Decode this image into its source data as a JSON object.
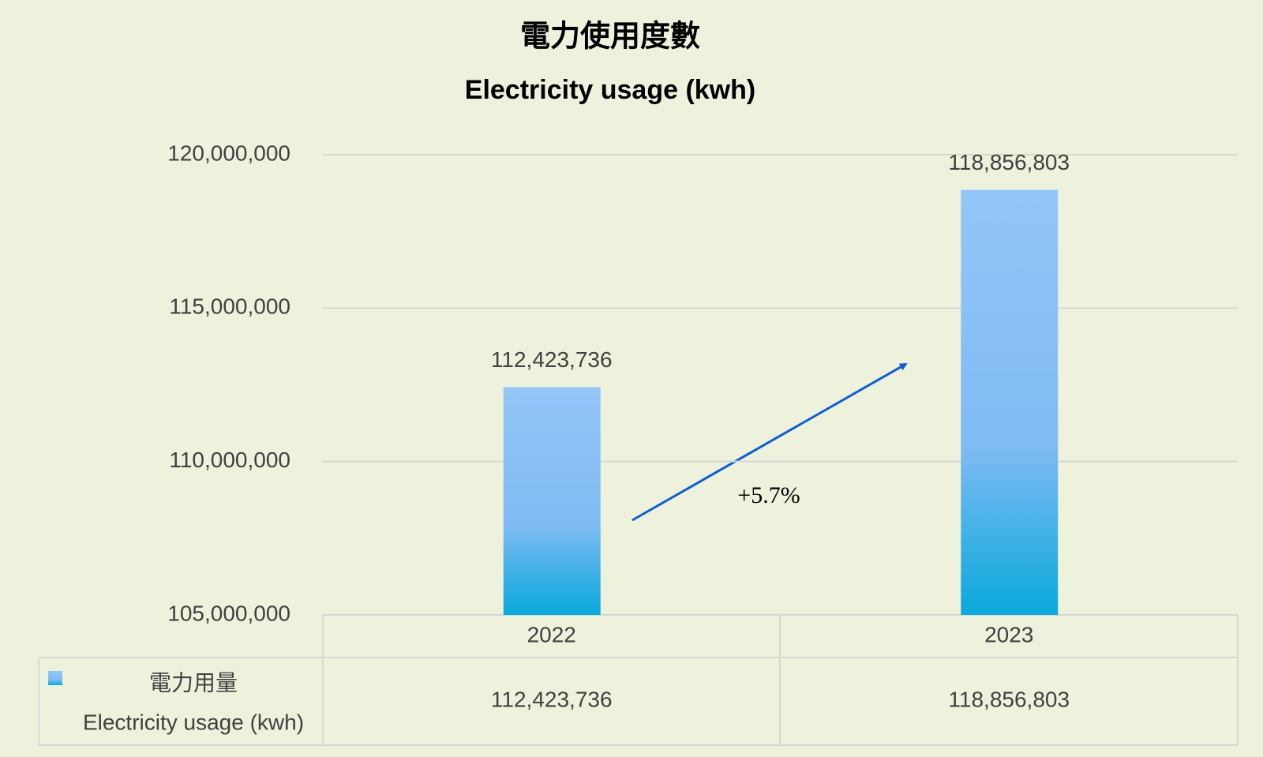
{
  "chart_data": {
    "type": "bar",
    "title": "電力使用度數",
    "subtitle": "Electricity usage (kwh)",
    "categories": [
      "2022",
      "2023"
    ],
    "series": [
      {
        "name": "電力用量",
        "name_en": "Electricity usage (kwh)",
        "color": "#80bbf4",
        "values": [
          112423736,
          118856803
        ],
        "value_labels": [
          "112,423,736",
          "118,856,803"
        ]
      }
    ],
    "ylim": [
      105000000,
      120000000
    ],
    "yticks": [
      {
        "value": 105000000,
        "label": "105,000,000"
      },
      {
        "value": 110000000,
        "label": "110,000,000"
      },
      {
        "value": 115000000,
        "label": "115,000,000"
      },
      {
        "value": 120000000,
        "label": "120,000,000"
      }
    ],
    "grid": true,
    "annotation": "+5.7%"
  }
}
